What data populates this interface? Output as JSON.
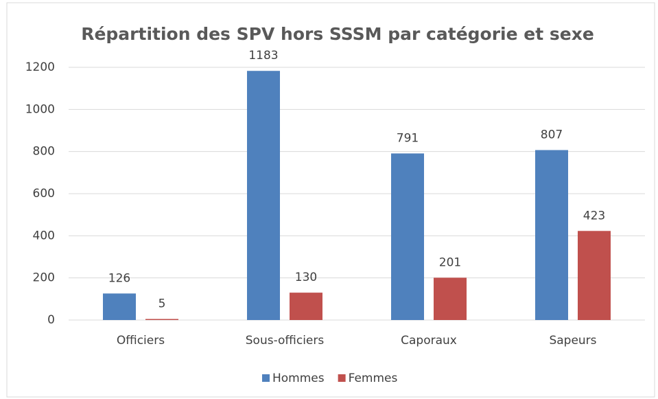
{
  "chart_data": {
    "type": "bar",
    "title": "Répartition des SPV hors SSSM par catégorie et sexe",
    "categories": [
      "Officiers",
      "Sous-officiers",
      "Caporaux",
      "Sapeurs"
    ],
    "series": [
      {
        "name": "Hommes",
        "color": "#4f81bd",
        "values": [
          126,
          1183,
          791,
          807
        ]
      },
      {
        "name": "Femmes",
        "color": "#c0504d",
        "values": [
          5,
          130,
          201,
          423
        ]
      }
    ],
    "ylim": [
      0,
      1200
    ],
    "yticks": [
      0,
      200,
      400,
      600,
      800,
      1000,
      1200
    ],
    "grid": true,
    "legend": "bottom"
  }
}
